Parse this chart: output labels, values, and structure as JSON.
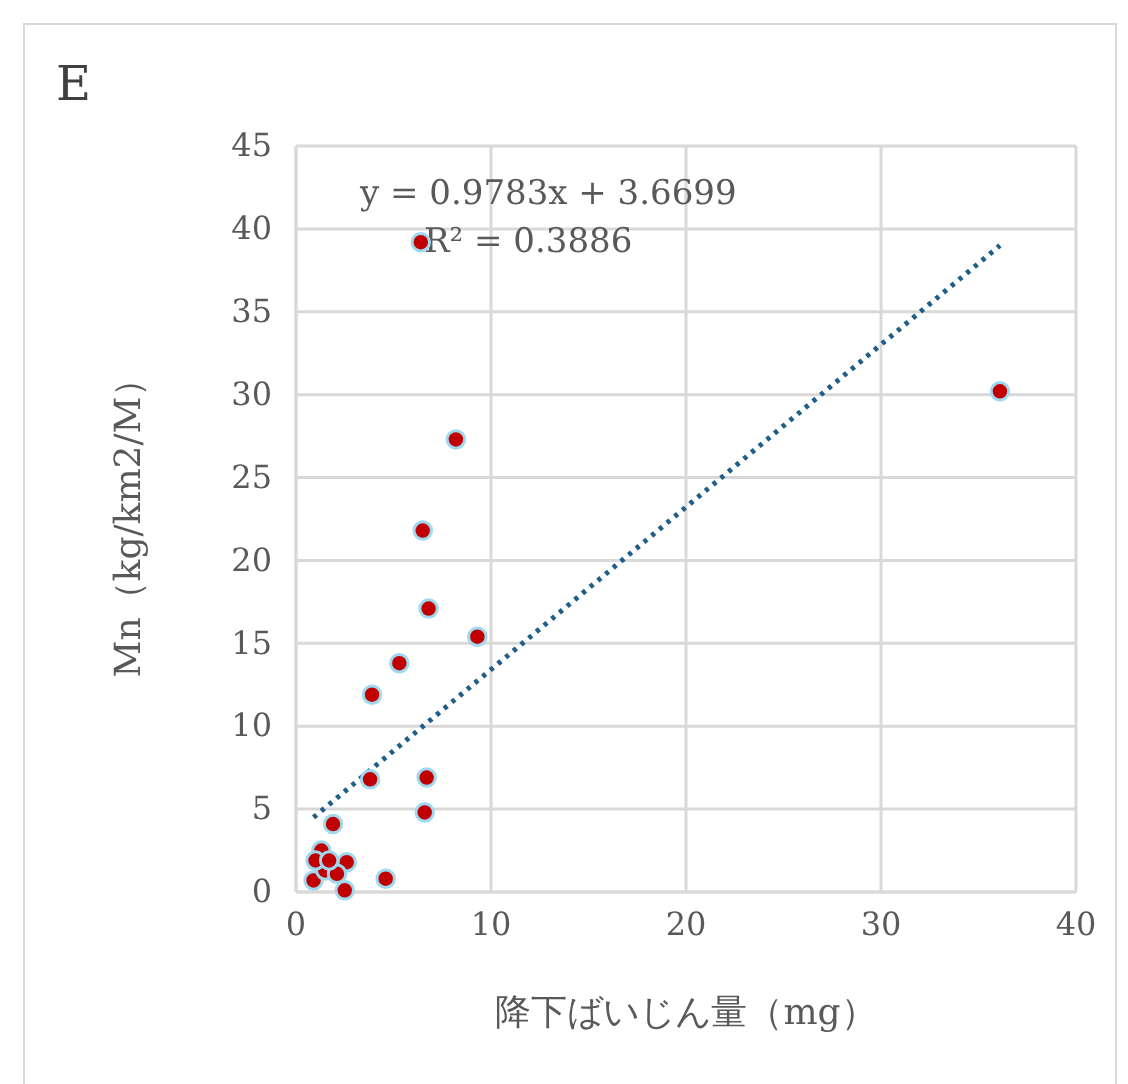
{
  "chart_data": {
    "type": "scatter",
    "title": "E",
    "xlabel": "降下ばいじん量（mg）",
    "ylabel": "Mn（kg/km2/M）",
    "xlim": [
      0,
      40
    ],
    "xticks": [
      0,
      10,
      20,
      30,
      40
    ],
    "ylim": [
      0,
      45
    ],
    "yticks": [
      0,
      5,
      10,
      15,
      20,
      25,
      30,
      35,
      40,
      45
    ],
    "grid": true,
    "annotations": [
      "y = 0.9783x + 3.6699",
      "R² = 0.3886"
    ],
    "series": [
      {
        "color": "#c00000",
        "marker": "circle",
        "x": [
          6.4,
          36.1,
          8.2,
          6.5,
          6.8,
          9.3,
          5.3,
          3.9,
          3.8,
          6.7,
          6.6,
          4.6,
          1.9,
          1.3,
          2.6,
          0.9,
          2.5,
          1.5,
          2.1,
          1.0,
          1.7
        ],
        "values": [
          39.2,
          30.2,
          27.3,
          21.8,
          17.1,
          15.4,
          13.8,
          11.9,
          6.8,
          6.9,
          4.8,
          0.8,
          4.1,
          2.5,
          1.8,
          0.7,
          0.1,
          1.3,
          1.1,
          1.9,
          1.9
        ]
      },
      {
        "type": "line",
        "color": "#1f5f87",
        "line_style": "dotted",
        "x": [
          0.9,
          36.1
        ],
        "values": [
          4.5,
          39.0
        ]
      }
    ]
  }
}
